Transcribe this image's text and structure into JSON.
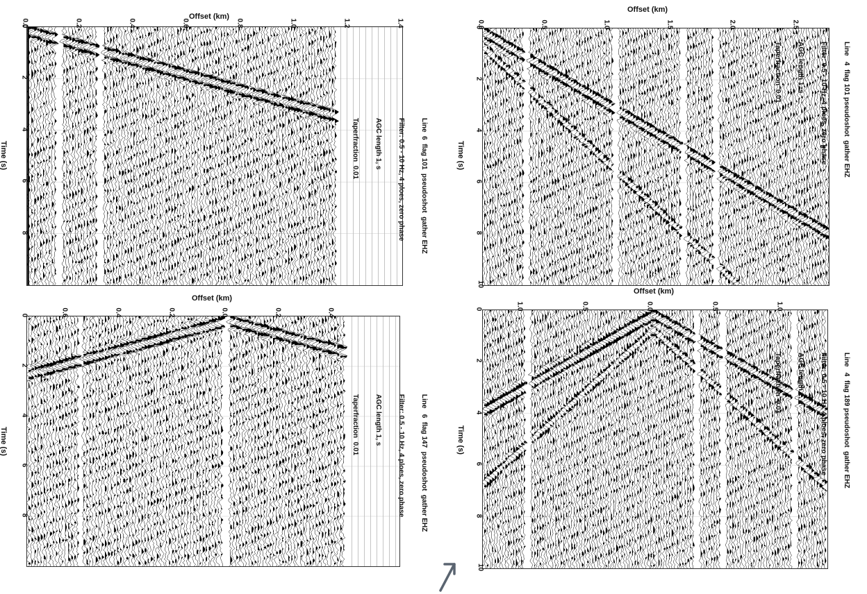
{
  "figure": {
    "arrow_color": "#5a6470"
  },
  "panels": [
    {
      "id": "top-left",
      "header_lines": [
        "Line  6  flag 101  pseudoshot  gather EHZ",
        "Filter: 0.5 - 10 Hz, 4 ploes, zero phase",
        "AGC length 1, s",
        "Taperfraction  0.01"
      ],
      "offset_label": "Offset (km)",
      "time_label": "Time (s)",
      "offset_ticks": [
        "0.0",
        "0.2",
        "0.4",
        "0.6",
        "0.8",
        "1.0",
        "1.2",
        "1.4"
      ],
      "time_ticks": [
        "0",
        "2",
        "4",
        "6",
        "8"
      ]
    },
    {
      "id": "bottom-left",
      "header_lines": [
        "Line   6  flag 147  pseudoshot  gather EHZ",
        "Filter: 0.5 - 10 Hz, 4 ploes, zero phase",
        "AGC length 1, s",
        "Taperfraction  0.01"
      ],
      "offset_label": "Offset (km)",
      "time_label": "Time (s)",
      "offset_ticks": [
        "0.6",
        "0.4",
        "0.2",
        "0.0",
        "0.2",
        "0.4"
      ],
      "time_ticks": [
        "0",
        "2",
        "4",
        "6",
        "8"
      ]
    },
    {
      "id": "top-right",
      "header_lines": [
        "Line   4  flag 101 pseudoshot  gather EHZ",
        "Filter: 0.5 - 10 Hz, 4 ploes, zero phase",
        "AGC length 1, s",
        "Taperfraction  0.01"
      ],
      "offset_label": "Offset (km)",
      "time_label": "Time (s)",
      "offset_ticks": [
        "0.0",
        "0.5",
        "1.0",
        "1.5",
        "2.0",
        "2.5"
      ],
      "time_ticks": [
        "0",
        "2",
        "4",
        "6",
        "8",
        "10"
      ]
    },
    {
      "id": "bottom-right",
      "header_lines": [
        "Line   4  flag 189 pseudoshot  gather EHZ",
        "Filter: 0.5 - 10 Hz, 4 ploes, zero phase",
        "AGC length 1, s",
        "Taperfraction  0.01"
      ],
      "offset_label": "Offset (km)",
      "time_label": "Time (s)",
      "offset_ticks": [
        "1.0",
        "0.5",
        "0.0",
        "0.5",
        "1.0"
      ],
      "time_ticks": [
        "0",
        "2",
        "4",
        "6",
        "8",
        "10"
      ]
    }
  ],
  "chart_data": [
    {
      "type": "wiggle",
      "title": "Line  6  flag 101  pseudoshot  gather EHZ",
      "xlabel": "Offset (km)",
      "ylabel": "Time (s)",
      "xlim": [
        0.0,
        1.4
      ],
      "ylim": [
        0,
        10
      ],
      "x_ticks": [
        0.0,
        0.2,
        0.4,
        0.6,
        0.8,
        1.0,
        1.2,
        1.4
      ],
      "y_ticks": [
        0,
        2,
        4,
        6,
        8
      ],
      "data_extent_offset_km": [
        0.0,
        1.15
      ],
      "source_offset_km": 0.0,
      "ink": "#000000"
    },
    {
      "type": "wiggle",
      "title": "Line   6  flag 147  pseudoshot  gather EHZ",
      "xlabel": "Offset (km)",
      "ylabel": "Time (s)",
      "xlim": [
        -0.75,
        0.65
      ],
      "ylim": [
        0,
        10
      ],
      "x_ticks": [
        -0.6,
        -0.4,
        -0.2,
        0.0,
        0.2,
        0.4
      ],
      "y_ticks": [
        0,
        2,
        4,
        6,
        8
      ],
      "data_extent_offset_km": [
        -0.75,
        0.45
      ],
      "source_offset_km": 0.0,
      "ink": "#000000"
    },
    {
      "type": "wiggle",
      "title": "Line   4  flag 101 pseudoshot  gather EHZ",
      "xlabel": "Offset (km)",
      "ylabel": "Time (s)",
      "xlim": [
        0.0,
        2.75
      ],
      "ylim": [
        0,
        10
      ],
      "x_ticks": [
        0.0,
        0.5,
        1.0,
        1.5,
        2.0,
        2.5
      ],
      "y_ticks": [
        0,
        2,
        4,
        6,
        8,
        10
      ],
      "data_extent_offset_km": [
        0.0,
        2.75
      ],
      "source_offset_km": 0.0,
      "ink": "#000000"
    },
    {
      "type": "wiggle",
      "title": "Line   4  flag 189 pseudoshot  gather EHZ",
      "xlabel": "Offset (km)",
      "ylabel": "Time (s)",
      "xlim": [
        -1.3,
        1.35
      ],
      "ylim": [
        0,
        10
      ],
      "x_ticks": [
        -1.0,
        -0.5,
        0.0,
        0.5,
        1.0
      ],
      "y_ticks": [
        0,
        2,
        4,
        6,
        8,
        10
      ],
      "data_extent_offset_km": [
        -1.3,
        1.35
      ],
      "source_offset_km": 0.0,
      "ink": "#000000"
    }
  ]
}
